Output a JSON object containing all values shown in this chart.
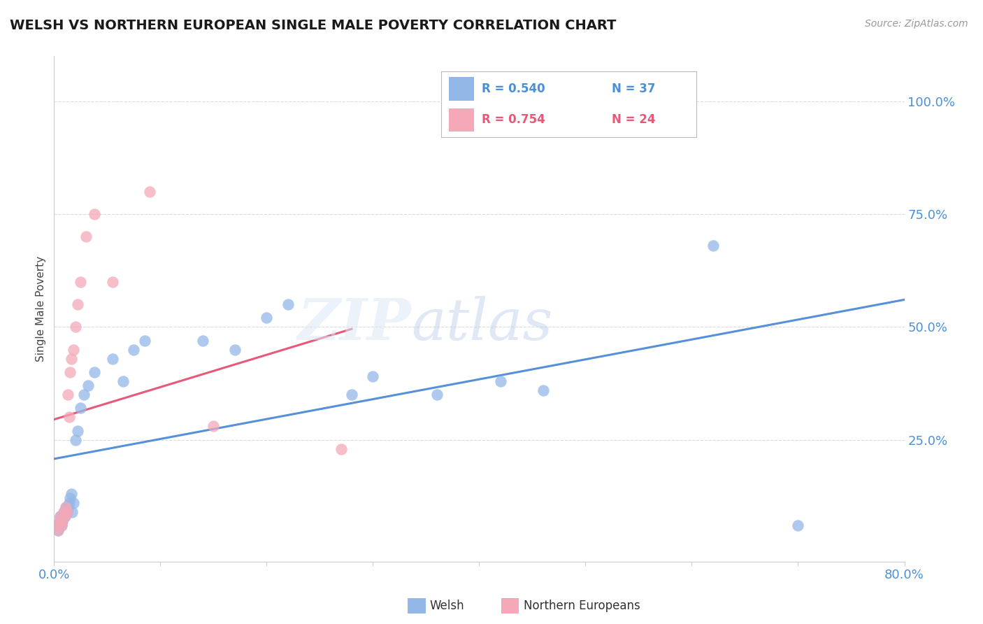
{
  "title": "WELSH VS NORTHERN EUROPEAN SINGLE MALE POVERTY CORRELATION CHART",
  "source": "Source: ZipAtlas.com",
  "ylabel": "Single Male Poverty",
  "xlim": [
    0.0,
    0.8
  ],
  "ylim": [
    -0.02,
    1.1
  ],
  "background_color": "#ffffff",
  "welsh_color": "#93b8e8",
  "northern_color": "#f4a8b8",
  "welsh_line_color": "#5590d8",
  "northern_line_color": "#e85878",
  "title_color": "#1a1a1a",
  "axis_label_color": "#444444",
  "tick_label_color": "#4a90d9",
  "grid_color": "#cccccc",
  "legend_r1": "R = 0.540",
  "legend_n1": "N = 37",
  "legend_r2": "R = 0.754",
  "legend_n2": "N = 24",
  "legend_label1": "Welsh",
  "legend_label2": "Northern Europeans",
  "y_tick_positions": [
    0.25,
    0.5,
    0.75,
    1.0
  ],
  "y_tick_labels": [
    "25.0%",
    "50.0%",
    "75.0%",
    "100.0%"
  ],
  "welsh_x": [
    0.003,
    0.004,
    0.005,
    0.006,
    0.007,
    0.008,
    0.009,
    0.01,
    0.011,
    0.012,
    0.013,
    0.014,
    0.015,
    0.016,
    0.017,
    0.018,
    0.02,
    0.022,
    0.025,
    0.028,
    0.032,
    0.038,
    0.055,
    0.065,
    0.075,
    0.085,
    0.14,
    0.17,
    0.2,
    0.22,
    0.28,
    0.3,
    0.36,
    0.42,
    0.46,
    0.62,
    0.7
  ],
  "welsh_y": [
    0.06,
    0.05,
    0.07,
    0.08,
    0.06,
    0.07,
    0.09,
    0.08,
    0.1,
    0.09,
    0.1,
    0.11,
    0.12,
    0.13,
    0.09,
    0.11,
    0.25,
    0.27,
    0.32,
    0.35,
    0.37,
    0.4,
    0.43,
    0.38,
    0.45,
    0.47,
    0.47,
    0.45,
    0.52,
    0.55,
    0.35,
    0.39,
    0.35,
    0.38,
    0.36,
    0.68,
    0.06
  ],
  "northern_x": [
    0.003,
    0.004,
    0.005,
    0.006,
    0.007,
    0.008,
    0.009,
    0.01,
    0.011,
    0.012,
    0.013,
    0.014,
    0.015,
    0.016,
    0.018,
    0.02,
    0.022,
    0.025,
    0.03,
    0.038,
    0.055,
    0.09,
    0.15,
    0.27
  ],
  "northern_y": [
    0.06,
    0.05,
    0.07,
    0.08,
    0.06,
    0.07,
    0.09,
    0.08,
    0.1,
    0.09,
    0.35,
    0.3,
    0.4,
    0.43,
    0.45,
    0.5,
    0.55,
    0.6,
    0.7,
    0.75,
    0.6,
    0.8,
    0.28,
    0.23
  ],
  "welsh_line_xstart": 0.0,
  "welsh_line_xend": 0.8,
  "northern_line_xstart": 0.0,
  "northern_line_xend": 0.28
}
